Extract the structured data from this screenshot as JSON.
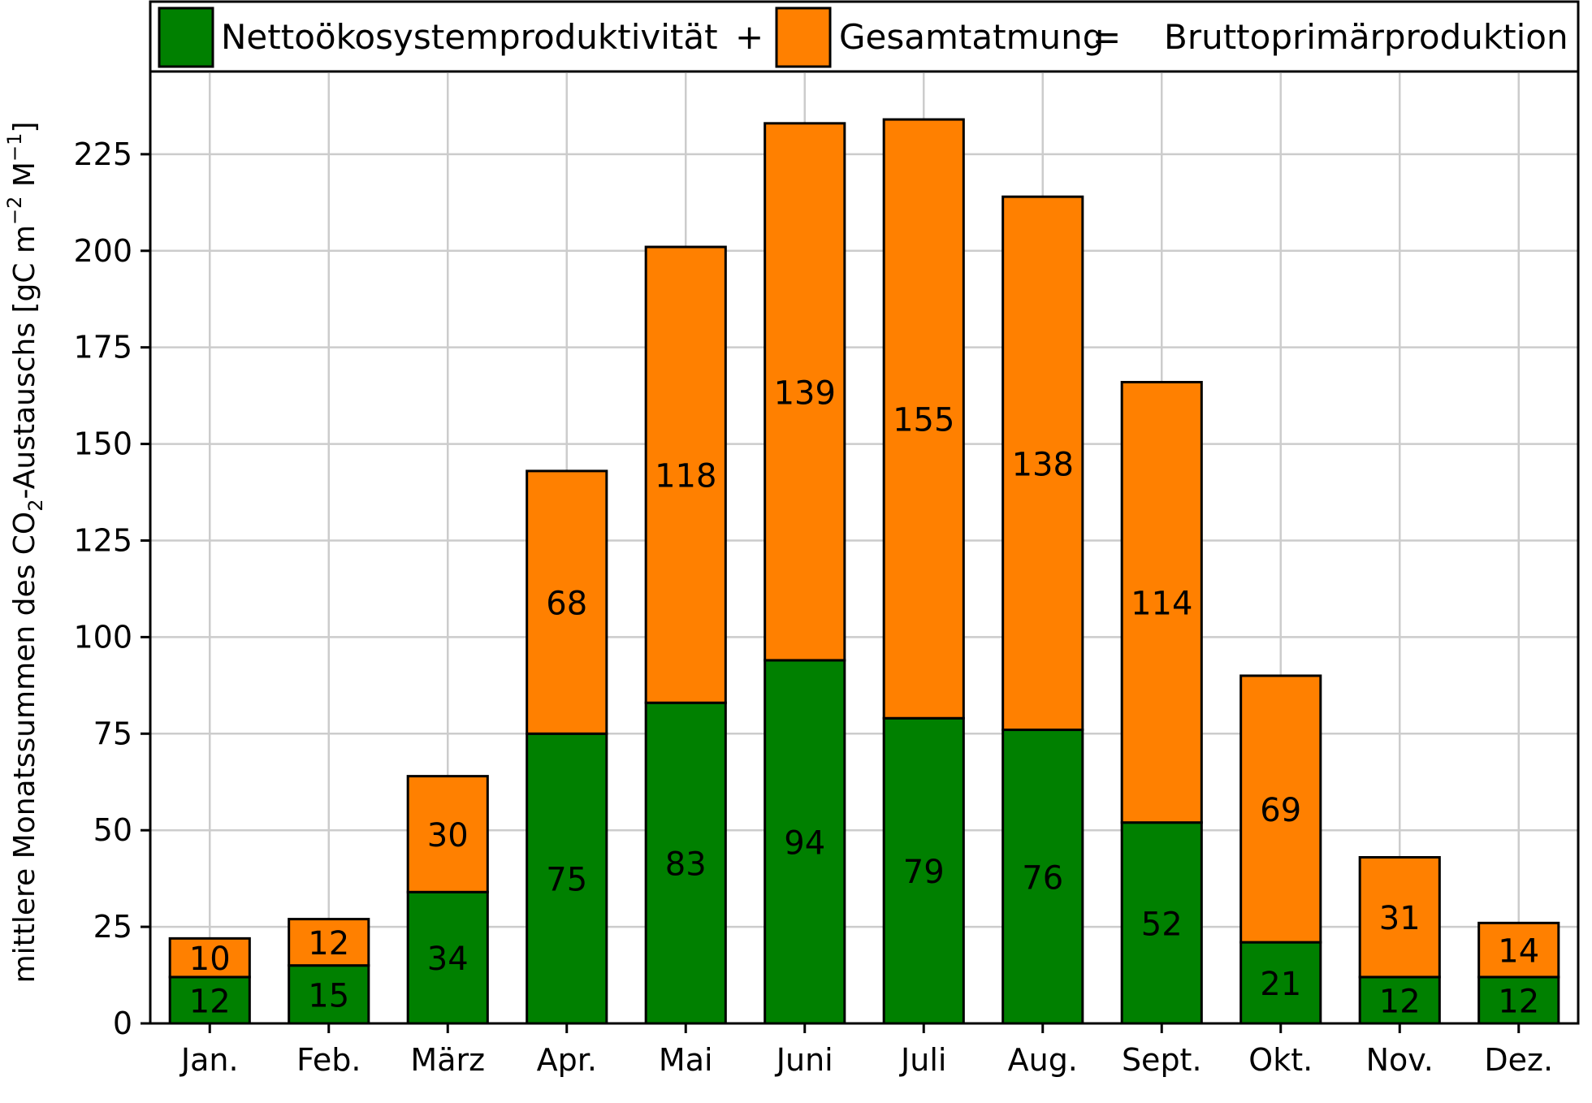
{
  "chart_data": {
    "type": "bar",
    "stacked": true,
    "categories": [
      "Jan.",
      "Feb.",
      "März",
      "Apr.",
      "Mai",
      "Juni",
      "Juli",
      "Aug.",
      "Sept.",
      "Okt.",
      "Nov.",
      "Dez."
    ],
    "series": [
      {
        "name": "Nettoökosystemproduktivität",
        "color": "#008000",
        "values": [
          12,
          15,
          34,
          75,
          83,
          94,
          79,
          76,
          52,
          21,
          12,
          12
        ]
      },
      {
        "name": "Gesamtatmung",
        "color": "#ff8000",
        "values": [
          10,
          12,
          30,
          68,
          118,
          139,
          155,
          138,
          114,
          69,
          31,
          14
        ]
      }
    ],
    "legend": {
      "placement": "top",
      "operator_1": "+",
      "operator_2": "=",
      "result_label": "Bruttoprimärproduktion"
    },
    "ylabel": {
      "main": "mittlere Monatssummen des CO",
      "sub": "2",
      "rest": "-Austauschs [gC m",
      "exp1": "−2",
      "mid": " M",
      "exp2": "−1",
      "end": "]"
    },
    "yticks": [
      "0",
      "25",
      "50",
      "75",
      "100",
      "125",
      "150",
      "175",
      "200",
      "225"
    ],
    "ylim": [
      0,
      246
    ],
    "grid": true
  }
}
